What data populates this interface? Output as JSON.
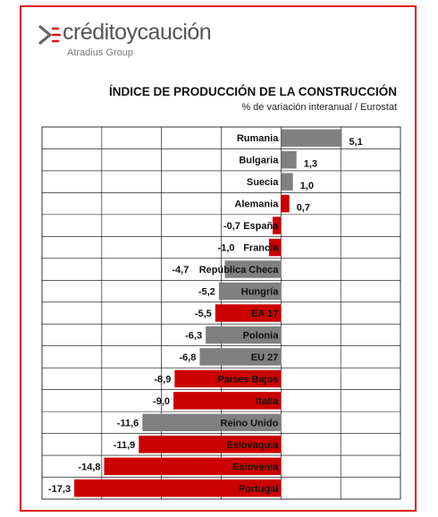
{
  "brand": {
    "name": "créditoycaución",
    "tagline": "Atradius Group"
  },
  "chart_data": {
    "type": "bar",
    "orientation": "horizontal",
    "title": "ÍNDICE DE PRODUCCIÓN DE LA CONSTRUCCIÓN",
    "subtitle": "% de variación interanual / Eurostat",
    "xlim": [
      -20,
      10
    ],
    "grid": true,
    "categories": [
      "Rumania",
      "Bulgaria",
      "Suecia",
      "Alemania",
      "España",
      "Francia",
      "República Checa",
      "Hungría",
      "EA 17",
      "Polonia",
      "EU 27",
      "Paises Bajos",
      "Italia",
      "Reino Unido",
      "Eslovaquia",
      "Eslovenia",
      "Portugal"
    ],
    "values": [
      5.1,
      1.3,
      1.0,
      0.7,
      -0.7,
      -1.0,
      -4.7,
      -5.2,
      -5.5,
      -6.3,
      -6.8,
      -8.9,
      -9.0,
      -11.6,
      -11.9,
      -14.8,
      -17.3
    ],
    "value_labels": [
      "5,1",
      "1,3",
      "1,0",
      "0,7",
      "-0,7",
      "-1,0",
      "-4,7",
      "-5,2",
      "-5,5",
      "-6,3",
      "-6,8",
      "-8,9",
      "-9,0",
      "-11,6",
      "-11,9",
      "-14,8",
      "-17,3"
    ],
    "colors": [
      "gray",
      "gray",
      "gray",
      "red",
      "red",
      "red",
      "gray",
      "gray",
      "red",
      "gray",
      "gray",
      "red",
      "red",
      "gray",
      "red",
      "red",
      "red"
    ]
  },
  "palette": {
    "gray": "#808080",
    "red": "#cc0000",
    "frame": "#e01010"
  }
}
